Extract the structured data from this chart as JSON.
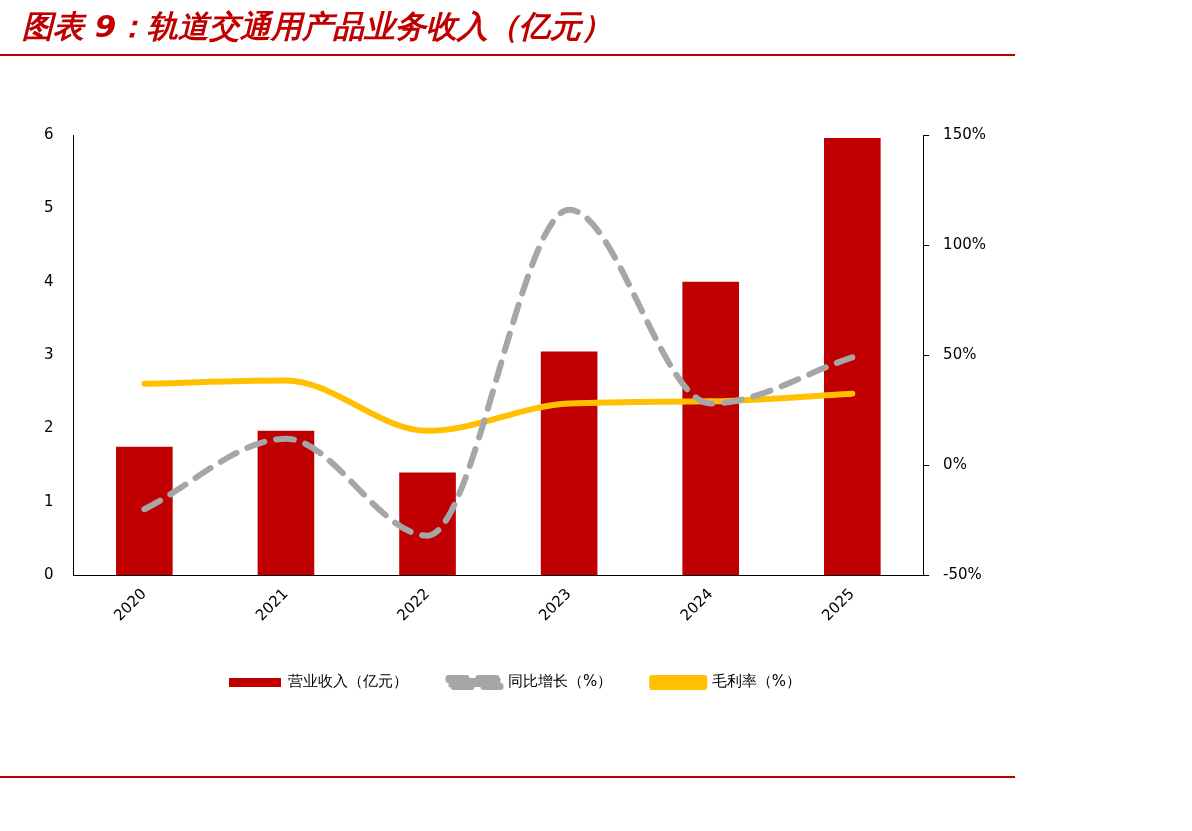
{
  "chart_data": {
    "type": "bar",
    "title": "图表 9：轨道交通用产品业务收入（亿元）",
    "categories": [
      "2020",
      "2021",
      "2022",
      "2023",
      "2024",
      "2025"
    ],
    "series": [
      {
        "name": "营业收入（亿元）",
        "color": "#c00000",
        "values": [
          1.75,
          1.97,
          1.4,
          3.05,
          4.0,
          5.96
        ]
      },
      {
        "name": "同比增长（%）",
        "type": "line",
        "axis": "y2",
        "line_style": "dashed",
        "color": "#a6a6a6",
        "values": [
          -20,
          12,
          -32,
          116,
          28,
          49
        ]
      },
      {
        "name": "毛利率（%）",
        "type": "line",
        "axis": "y2",
        "line_style": "solid",
        "color": "#ffc000",
        "values": [
          37,
          38.5,
          15.6,
          28,
          29,
          32.5
        ]
      }
    ],
    "ylim": [
      0,
      6
    ],
    "yticks": [
      0,
      1,
      2,
      3,
      4,
      5,
      6
    ],
    "y2lim": [
      -50,
      150
    ],
    "y2ticks": [
      {
        "value": -50,
        "label": "-50%"
      },
      {
        "value": 0,
        "label": "0%"
      },
      {
        "value": 50,
        "label": "50%"
      },
      {
        "value": 100,
        "label": "100%"
      },
      {
        "value": 150,
        "label": "150%"
      }
    ],
    "grid": false,
    "legend": "bottom",
    "marker": "none"
  }
}
